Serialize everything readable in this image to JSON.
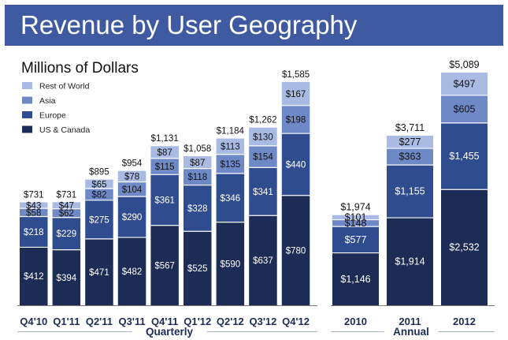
{
  "header": {
    "title": "Revenue by User Geography"
  },
  "chart_data": {
    "type": "bar",
    "stacked": true,
    "title": "Revenue by User Geography",
    "subtitle": "Millions of Dollars",
    "ylabel": "Millions of Dollars",
    "xlabel": "",
    "legend_position": "top-left",
    "colors": {
      "US & Canada": "#1c2c55",
      "Europe": "#2f4d8e",
      "Asia": "#6f88c6",
      "Rest of World": "#a9bbe3",
      "axis": "#777777",
      "separator": "#ffffff",
      "label_light": "#ffffff",
      "label_dark": "#111111"
    },
    "legend": [
      "Rest of World",
      "Asia",
      "Europe",
      "US & Canada"
    ],
    "series_order": [
      "US & Canada",
      "Europe",
      "Asia",
      "Rest of World"
    ],
    "groups": [
      {
        "name": "Quarterly",
        "ylim": [
          0,
          1585
        ],
        "categories": [
          "Q4'10",
          "Q1'11",
          "Q2'11",
          "Q3'11",
          "Q4'11",
          "Q1'12",
          "Q2'12",
          "Q3'12",
          "Q4'12"
        ],
        "series": [
          {
            "name": "US & Canada",
            "values": [
              412,
              394,
              471,
              482,
              567,
              525,
              590,
              637,
              780
            ],
            "labels": [
              "$412",
              "$394",
              "$471",
              "$482",
              "$567",
              "$525",
              "$590",
              "$637",
              "$780"
            ]
          },
          {
            "name": "Europe",
            "values": [
              218,
              229,
              275,
              290,
              361,
              328,
              346,
              341,
              440
            ],
            "labels": [
              "$218",
              "$229",
              "$275",
              "$290",
              "$361",
              "$328",
              "$346",
              "$341",
              "$440"
            ]
          },
          {
            "name": "Asia",
            "values": [
              58,
              62,
              82,
              104,
              115,
              118,
              135,
              154,
              198
            ],
            "labels": [
              "$58",
              "$62",
              "$82",
              "$104",
              "$115",
              "$118",
              "$135",
              "$154",
              "$198"
            ]
          },
          {
            "name": "Rest of World",
            "values": [
              43,
              47,
              65,
              78,
              87,
              87,
              113,
              130,
              167
            ],
            "labels": [
              "$43",
              "$47",
              "$65",
              "$78",
              "$87",
              "$87",
              "$113",
              "$130",
              "$167"
            ]
          }
        ],
        "totals": [
          731,
          731,
          895,
          954,
          1131,
          1058,
          1184,
          1262,
          1585
        ],
        "total_labels": [
          "$731",
          "$731",
          "$895",
          "$954",
          "$1,131",
          "$1,058",
          "$1,184",
          "$1,262",
          "$1,585"
        ]
      },
      {
        "name": "Annual",
        "ylim": [
          0,
          5089
        ],
        "categories": [
          "2010",
          "2011",
          "2012"
        ],
        "series": [
          {
            "name": "US & Canada",
            "values": [
              1146,
              1914,
              2532
            ],
            "labels": [
              "$1,146",
              "$1,914",
              "$2,532"
            ]
          },
          {
            "name": "Europe",
            "values": [
              577,
              1155,
              1455
            ],
            "labels": [
              "$577",
              "$1,155",
              "$1,455"
            ]
          },
          {
            "name": "Asia",
            "values": [
              148,
              363,
              605
            ],
            "labels": [
              "$148",
              "$363",
              "$605"
            ]
          },
          {
            "name": "Rest of World",
            "values": [
              101,
              277,
              497
            ],
            "labels": [
              "$101",
              "$277",
              "$497"
            ]
          }
        ],
        "totals": [
          1974,
          3711,
          5089
        ],
        "total_labels": [
          "$1,974",
          "$3,711",
          "$5,089"
        ]
      }
    ]
  }
}
